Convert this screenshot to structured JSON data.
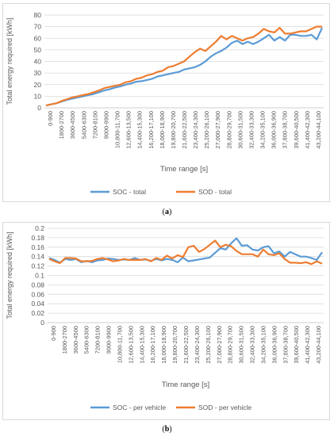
{
  "panels": [
    {
      "label_prefix": "(",
      "label_letter": "a",
      "label_suffix": ")"
    },
    {
      "label_prefix": "(",
      "label_letter": "b",
      "label_suffix": ")"
    }
  ],
  "chart_data": [
    {
      "type": "line",
      "title": "",
      "xlabel": "Time range [s]",
      "ylabel": "Total energy required [kWh]",
      "ylim": [
        0,
        80
      ],
      "yticks": [
        "0",
        "10",
        "20",
        "30",
        "40",
        "50",
        "60",
        "70",
        "80"
      ],
      "grid": true,
      "legend_position": "bottom",
      "x_tick_labels": [
        "0-900",
        "1800-2700",
        "3600-4500",
        "5400-6300",
        "7200-8100",
        "9000-9900",
        "10,800-11,700",
        "12,600-13,500",
        "14,400-15,300",
        "16,200-17,100",
        "18,000-18,900",
        "19,800-20,700",
        "21,600-22,500",
        "23,400-24,300",
        "25,200-26,100",
        "27,000-27,900",
        "28,800-29,700",
        "30,600-31,500",
        "32,400-33,300",
        "34,200-35,100",
        "36,000-36,900",
        "37,800-38,700",
        "39,600-40,500",
        "41,400-42,300",
        "43,200-44,100"
      ],
      "series": [
        {
          "name": "SOC - total",
          "color": "#5B9BD5",
          "values": [
            2,
            3,
            4,
            5.5,
            7,
            8,
            9,
            10,
            11,
            12,
            13.5,
            15,
            16,
            17.5,
            18.5,
            20,
            21,
            22.5,
            23,
            24,
            25,
            27,
            28,
            29,
            30,
            31,
            33,
            34,
            35,
            37,
            40,
            44,
            47,
            49,
            52,
            56,
            58,
            55,
            57,
            55,
            57,
            60,
            63,
            58,
            61,
            58,
            63,
            63,
            62,
            62,
            63,
            59,
            69
          ]
        },
        {
          "name": "SOD - total",
          "color": "#ED7D31",
          "values": [
            2,
            3,
            4,
            6,
            7.5,
            9,
            10,
            11,
            12,
            13.5,
            15,
            17,
            18,
            19,
            20,
            22,
            23,
            25,
            26,
            28,
            29,
            31,
            32,
            35,
            36,
            38,
            40,
            44,
            48,
            51,
            49,
            53,
            57,
            62,
            59,
            62,
            60,
            58,
            60,
            61,
            64,
            68,
            66,
            65,
            69,
            64,
            64,
            65,
            66,
            66,
            68,
            70,
            70
          ]
        }
      ]
    },
    {
      "type": "line",
      "title": "",
      "xlabel": "Time range [s]",
      "ylabel": "Total energy required [kWh]",
      "ylim": [
        0,
        0.2
      ],
      "yticks": [
        "0",
        "0.02",
        "0.04",
        "0.06",
        "0.08",
        "0.1",
        "0.12",
        "0.14",
        "0.16",
        "0.18",
        "0.2"
      ],
      "grid": true,
      "legend_position": "bottom",
      "x_tick_labels": [
        "0-900",
        "1800-2700",
        "3600-4500",
        "5400-6300",
        "7200-8100",
        "9000-9900",
        "10,800-11,700",
        "12,600-13,500",
        "14,400-15,300",
        "16,200-17,100",
        "18,000-18,900",
        "19,800-20,700",
        "21,600-22,500",
        "23,400-24,300",
        "25,200-26,100",
        "27,000-27,900",
        "28,800-29,700",
        "30,600-31,500",
        "32,400-33,300",
        "34,200-35,100",
        "36,000-36,900",
        "37,800-38,700",
        "39,600-40,500",
        "41,400-42,300",
        "43,200-44,100"
      ],
      "series": [
        {
          "name": "SOC - per vehicle",
          "color": "#5B9BD5",
          "values": [
            0.137,
            0.133,
            0.127,
            0.135,
            0.133,
            0.135,
            0.128,
            0.131,
            0.128,
            0.132,
            0.133,
            0.136,
            0.135,
            0.133,
            0.134,
            0.133,
            0.137,
            0.133,
            0.134,
            0.131,
            0.135,
            0.132,
            0.135,
            0.133,
            0.128,
            0.138,
            0.13,
            0.132,
            0.134,
            0.136,
            0.138,
            0.148,
            0.158,
            0.155,
            0.168,
            0.179,
            0.163,
            0.164,
            0.155,
            0.153,
            0.16,
            0.162,
            0.147,
            0.151,
            0.14,
            0.15,
            0.145,
            0.14,
            0.14,
            0.137,
            0.133,
            0.149
          ]
        },
        {
          "name": "SOD - per vehicle",
          "color": "#ED7D31",
          "values": [
            0.135,
            0.13,
            0.126,
            0.137,
            0.137,
            0.136,
            0.13,
            0.13,
            0.131,
            0.135,
            0.137,
            0.134,
            0.13,
            0.132,
            0.135,
            0.133,
            0.133,
            0.133,
            0.135,
            0.13,
            0.137,
            0.133,
            0.142,
            0.136,
            0.143,
            0.139,
            0.16,
            0.163,
            0.15,
            0.156,
            0.165,
            0.174,
            0.16,
            0.165,
            0.162,
            0.152,
            0.145,
            0.145,
            0.145,
            0.14,
            0.155,
            0.145,
            0.143,
            0.147,
            0.135,
            0.127,
            0.127,
            0.126,
            0.128,
            0.124,
            0.13,
            0.125
          ]
        }
      ]
    }
  ]
}
